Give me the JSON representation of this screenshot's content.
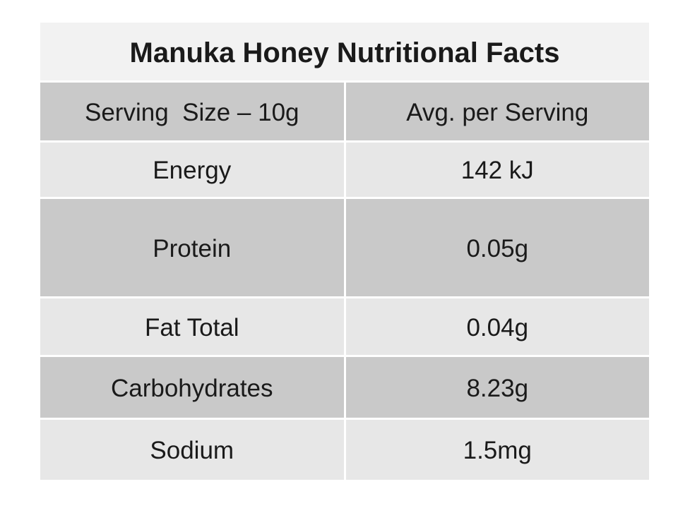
{
  "slide": {
    "background": "#ffffff"
  },
  "chart_data": {
    "type": "table",
    "title": "Manuka Honey Nutritional Facts",
    "columns": [
      "Serving  Size – 10g",
      "Avg. per Serving"
    ],
    "rows": [
      [
        "Energy",
        "142 kJ"
      ],
      [
        "Protein",
        "0.05g"
      ],
      [
        "Fat Total",
        "0.04g"
      ],
      [
        "Carbohydrates",
        "8.23g"
      ],
      [
        "Sodium",
        "1.5mg"
      ]
    ],
    "layout_hints": {
      "banded_rows": true,
      "title_row_merged": true
    }
  },
  "colors": {
    "header_band": "#f2f2f2",
    "dark_band": "#c9c9c9",
    "light_band": "#e7e7e7",
    "gutter": "#ffffff",
    "text": "#1a1a1a"
  }
}
